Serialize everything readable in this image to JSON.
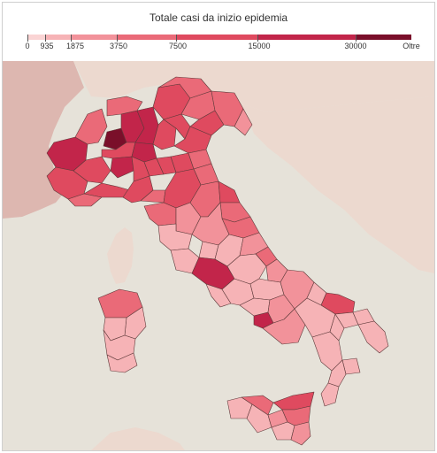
{
  "title": "Totale casi da inizio epidemia",
  "legend": {
    "ticks": [
      "0",
      "935",
      "1875",
      "3750",
      "7500",
      "15000",
      "30000",
      "Oltre"
    ],
    "colors": [
      "#fad4d4",
      "#f6b3b6",
      "#f2929a",
      "#ea6a78",
      "#df4a5f",
      "#c2254a",
      "#7a0f2a"
    ]
  },
  "map_colors": {
    "sea": "#e6e2d9",
    "land_foreign": "#ecd9cf",
    "land_france": "#ddb7b0"
  }
}
